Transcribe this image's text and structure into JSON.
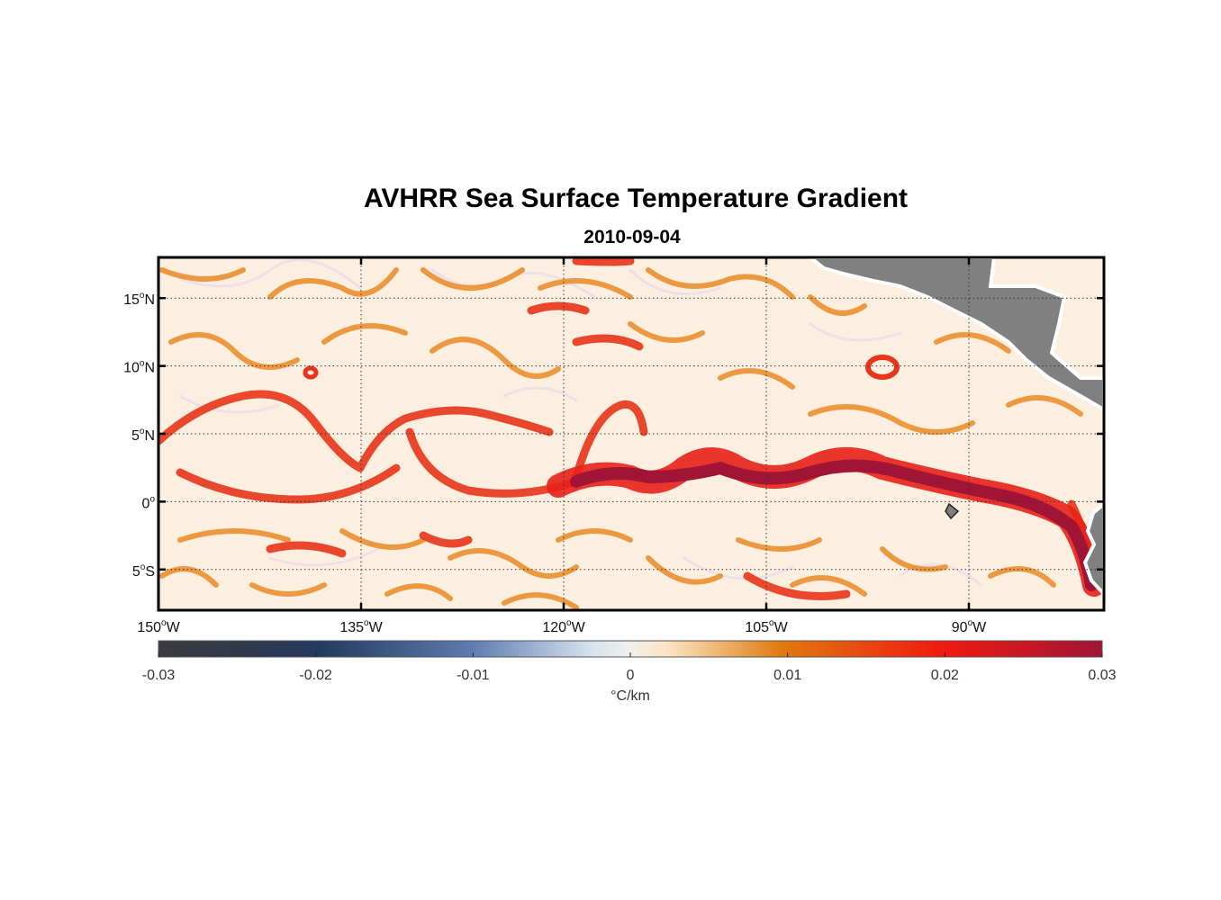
{
  "title": "AVHRR Sea Surface Temperature Gradient",
  "subtitle": "2010-09-04",
  "map": {
    "lon_range": [
      -150,
      -80
    ],
    "lat_range": [
      -8,
      18
    ],
    "grid": "dotted",
    "lon_ticks": [
      {
        "value": -150,
        "deg": "150",
        "hemi": "W"
      },
      {
        "value": -135,
        "deg": "135",
        "hemi": "W"
      },
      {
        "value": -120,
        "deg": "120",
        "hemi": "W"
      },
      {
        "value": -105,
        "deg": "105",
        "hemi": "W"
      },
      {
        "value": -90,
        "deg": "90",
        "hemi": "W"
      }
    ],
    "lat_ticks": [
      {
        "value": 15,
        "deg": "15",
        "hemi": "N"
      },
      {
        "value": 10,
        "deg": "10",
        "hemi": "N"
      },
      {
        "value": 5,
        "deg": "5",
        "hemi": "N"
      },
      {
        "value": 0,
        "deg": "0",
        "hemi": ""
      },
      {
        "value": -5,
        "deg": "5",
        "hemi": "S"
      }
    ],
    "degree_symbol": "o",
    "land_color": "#808080",
    "ocean_background": "#fcefe0"
  },
  "colorbar": {
    "min": -0.03,
    "max": 0.03,
    "tick_labels": [
      "-0.03",
      "-0.02",
      "-0.01",
      "0",
      "0.01",
      "0.02",
      "0.03"
    ],
    "units": "°C/km",
    "colors": [
      "#3b3b3b",
      "#243a5e",
      "#5d7ab0",
      "#f3efe9",
      "#fbe4c4",
      "#e07a10",
      "#f01a10",
      "#a01535"
    ]
  }
}
